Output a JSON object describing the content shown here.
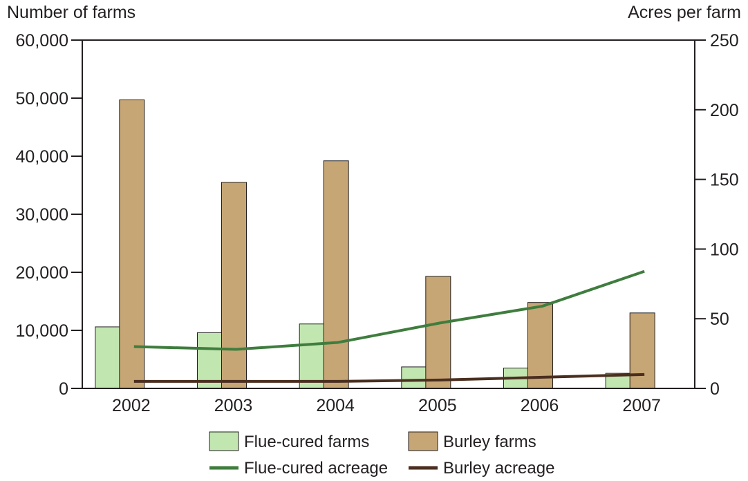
{
  "chart_data": {
    "type": "bar",
    "ylabel_left": "Number of farms",
    "ylabel_right": "Acres per farm",
    "categories": [
      "2002",
      "2003",
      "2004",
      "2005",
      "2006",
      "2007"
    ],
    "ylim_left": [
      0,
      60000
    ],
    "ylim_right": [
      0,
      250
    ],
    "yticks_left": [
      "0",
      "10,000",
      "20,000",
      "30,000",
      "40,000",
      "50,000",
      "60,000"
    ],
    "yticks_right": [
      "0",
      "50",
      "100",
      "150",
      "200",
      "250"
    ],
    "bar_series": [
      {
        "name": "Flue-cured farms",
        "color": "#c2e6b0",
        "values": [
          10600,
          9600,
          11100,
          3700,
          3500,
          2600
        ]
      },
      {
        "name": "Burley farms",
        "color": "#c6a675",
        "values": [
          49700,
          35500,
          39200,
          19300,
          14800,
          13000
        ]
      }
    ],
    "line_series": [
      {
        "name": "Flue-cured acreage",
        "color": "#3f7d3e",
        "axis": "right",
        "values": [
          30,
          28,
          33,
          47,
          59,
          84
        ]
      },
      {
        "name": "Burley acreage",
        "color": "#4a2e1f",
        "axis": "right",
        "values": [
          5,
          5,
          5,
          6,
          8,
          10
        ]
      }
    ],
    "grid": false,
    "legend": "bottom"
  }
}
